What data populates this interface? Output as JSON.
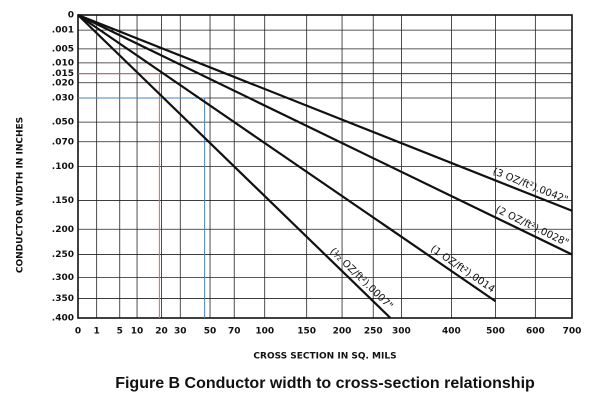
{
  "chart_data": {
    "type": "line",
    "caption": "Figure B   Conductor width to cross-section relationship",
    "x_label": "CROSS SECTION IN SQ. MILS",
    "y_label": "CONDUCTOR WIDTH IN INCHES",
    "xscale": "sqrt",
    "yscale": "sqrt",
    "y_inverted": true,
    "grid": true,
    "xlim": [
      0,
      700
    ],
    "ylim": [
      0,
      0.4
    ],
    "xticks": [
      0,
      1,
      5,
      10,
      20,
      30,
      50,
      70,
      100,
      150,
      200,
      250,
      300,
      400,
      500,
      600,
      700
    ],
    "yticks": [
      0,
      {
        "value": 0.001,
        "label": ".001"
      },
      {
        "value": 0.005,
        "label": ".005"
      },
      {
        "value": 0.01,
        "label": ".010"
      },
      {
        "value": 0.015,
        "label": ".015"
      },
      {
        "value": 0.02,
        "label": ".020"
      },
      {
        "value": 0.03,
        "label": ".030"
      },
      {
        "value": 0.05,
        "label": ".050"
      },
      {
        "value": 0.07,
        "label": ".070"
      },
      {
        "value": 0.1,
        "label": ".100"
      },
      {
        "value": 0.15,
        "label": ".150"
      },
      {
        "value": 0.2,
        "label": ".200"
      },
      {
        "value": 0.25,
        "label": ".250"
      },
      {
        "value": 0.3,
        "label": ".300"
      },
      {
        "value": 0.35,
        "label": ".350"
      },
      {
        "value": 0.4,
        "label": ".400"
      }
    ],
    "series": [
      {
        "name": "(3 OZ/ft²).0042\"",
        "color": "#111111",
        "x": [
          0,
          700
        ],
        "values": [
          0,
          0.167
        ]
      },
      {
        "name": "(2 OZ/ft²).0028\"",
        "color": "#111111",
        "x": [
          0,
          700
        ],
        "values": [
          0,
          0.25
        ]
      },
      {
        "name": "(1 OZ/ft²).0014",
        "color": "#111111",
        "x": [
          0,
          500
        ],
        "values": [
          0,
          0.357
        ]
      },
      {
        "name": "(½ OZ/ft²).0007\"",
        "color": "#111111",
        "x": [
          0,
          280
        ],
        "values": [
          0,
          0.4
        ]
      }
    ],
    "guides": [
      {
        "color": "#e06060",
        "x": 19,
        "y": 0.015
      },
      {
        "color": "#4a80c0",
        "x": 46,
        "y": 0.03
      }
    ]
  }
}
